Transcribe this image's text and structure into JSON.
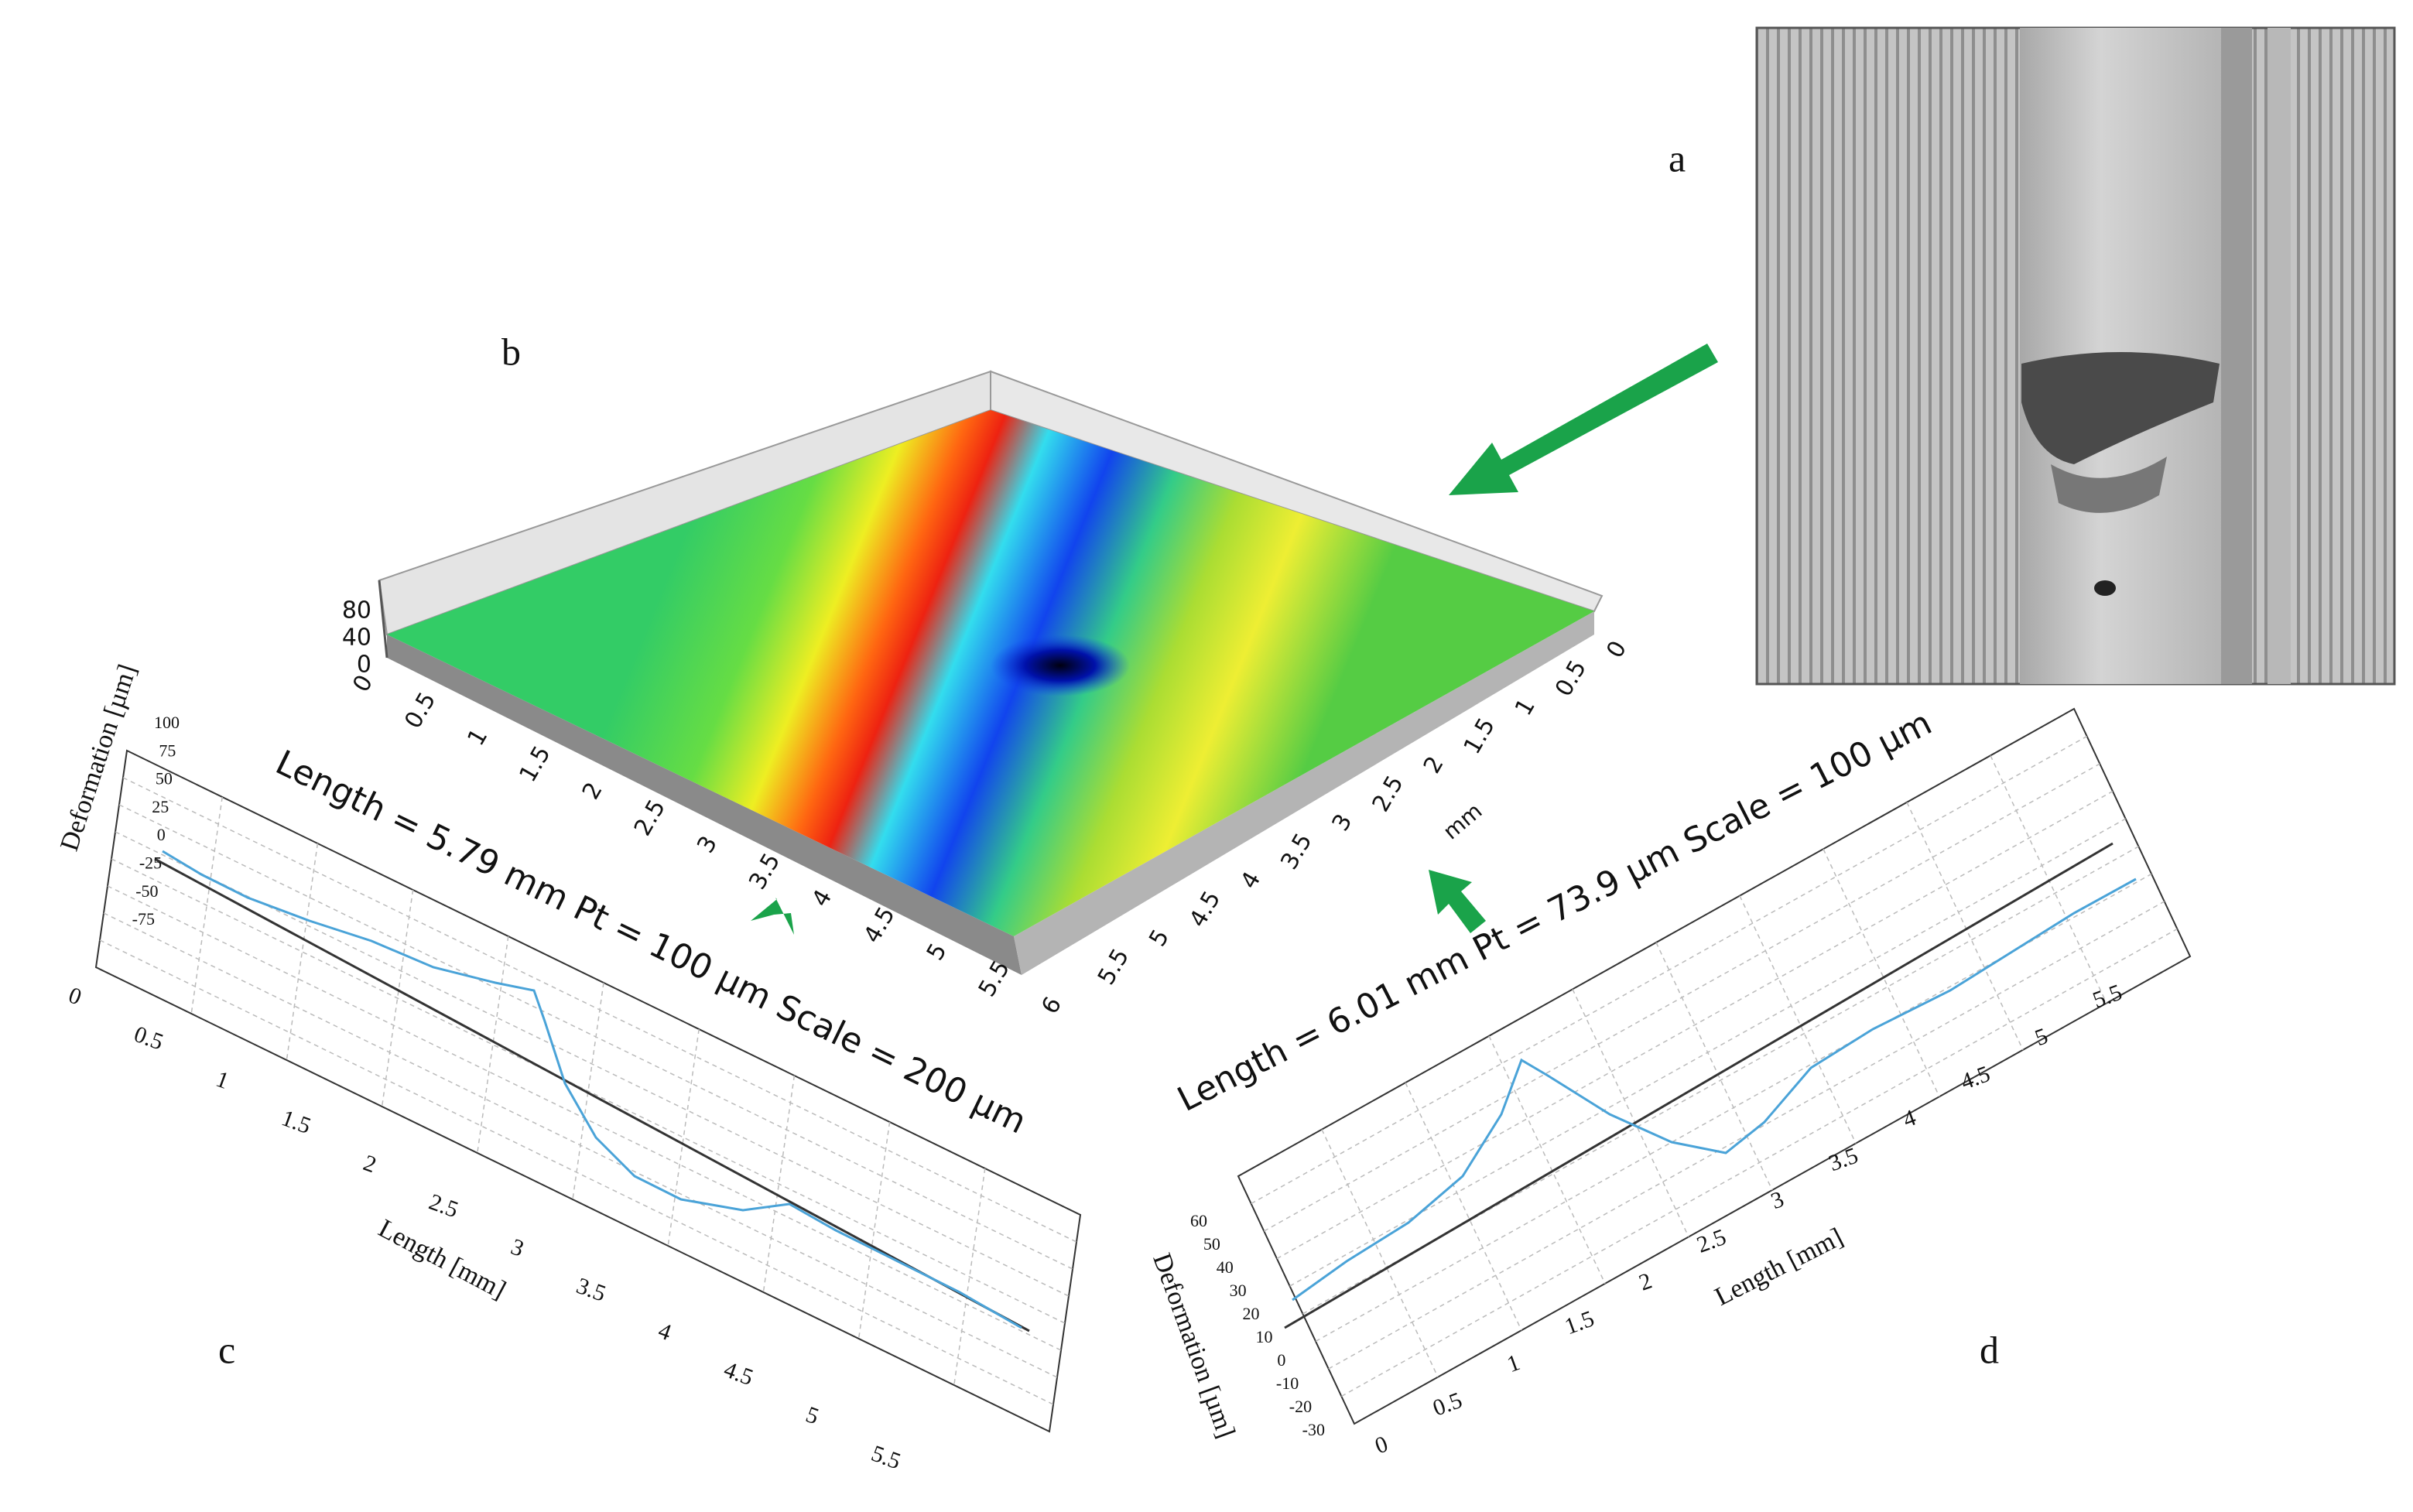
{
  "panel_labels": [
    "a",
    "b",
    "c",
    "d"
  ],
  "panel_b": {
    "z_ticks": [
      "80",
      "40",
      "0"
    ],
    "x_ticks": [
      "0",
      "0.5",
      "1",
      "1.5",
      "2",
      "2.5",
      "3",
      "3.5",
      "4",
      "4.5",
      "5",
      "5.5",
      "6"
    ],
    "y_ticks": [
      "0",
      "0.5",
      "1",
      "1.5",
      "2",
      "2.5",
      "3",
      "3.5",
      "4",
      "4.5",
      "5",
      "5.5"
    ],
    "unit": "mm"
  },
  "panel_c": {
    "title": "Length = 5.79 mm Pt = 100 µm Scale = 200 µm",
    "y_label": "Deformation  [µm]",
    "x_label": "Length [mm]",
    "y_ticks": [
      "100",
      "75",
      "50",
      "25",
      "0",
      "-25",
      "-50",
      "-75"
    ],
    "x_ticks": [
      "0",
      "0.5",
      "1",
      "1.5",
      "2",
      "2.5",
      "3",
      "3.5",
      "4",
      "4.5",
      "5",
      "5.5"
    ]
  },
  "panel_d": {
    "title": "Length = 6.01 mm Pt = 73.9 µm Scale = 100 µm",
    "y_label": "Deformation [µm]",
    "x_label": "Length [mm]",
    "y_ticks": [
      "60",
      "50",
      "40",
      "30",
      "20",
      "10",
      "0",
      "-10",
      "-20",
      "-30"
    ],
    "x_ticks": [
      "0",
      "0.5",
      "1",
      "1.5",
      "2",
      "2.5",
      "3",
      "3.5",
      "4",
      "4.5",
      "5",
      "5.5"
    ]
  }
}
